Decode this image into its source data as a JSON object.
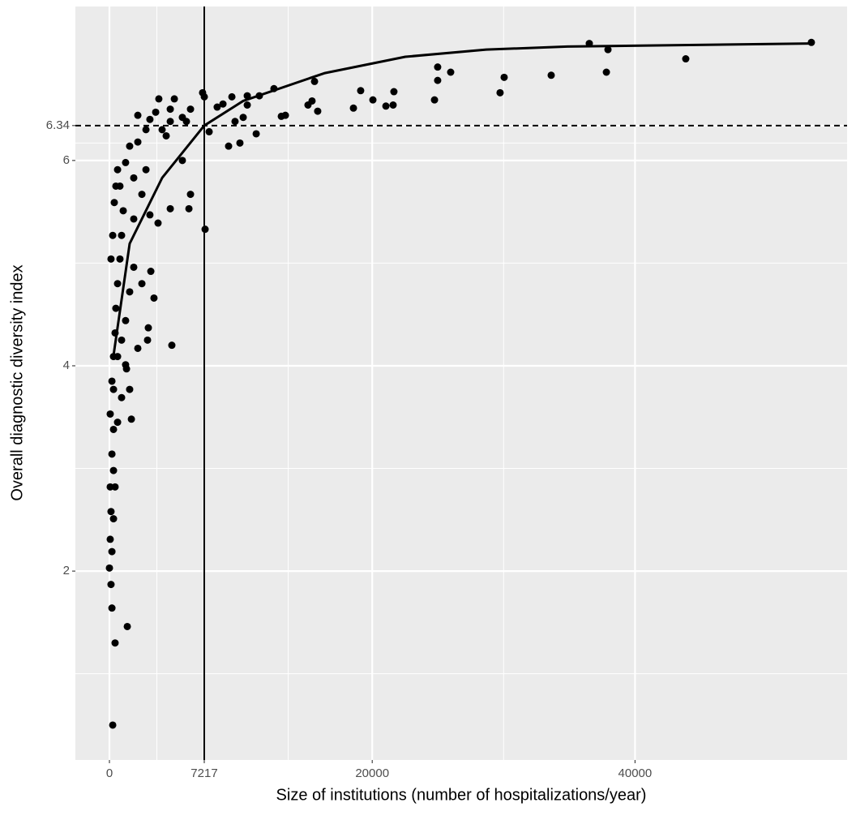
{
  "chart_data": {
    "type": "scatter",
    "x_label": "Size of institutions (number of hospitalizations/year)",
    "y_label": "Overall diagnostic diversity index",
    "color": "#000000",
    "grid": true,
    "xlim": [
      -2591,
      56138
    ],
    "ylim": [
      0.16,
      7.5
    ],
    "xticks": [
      0,
      7217,
      20000,
      40000
    ],
    "yticks": [
      2,
      4,
      6,
      6.34
    ],
    "hline": 6.34,
    "vline": 7217,
    "x": [
      53420,
      43860,
      37820,
      37940,
      36520,
      33620,
      30040,
      29730,
      25970,
      24980,
      24980,
      24740,
      21650,
      21590,
      21040,
      20050,
      19120,
      18570,
      15850,
      15420,
      15110,
      15610,
      13390,
      13080,
      12520,
      11410,
      11170,
      10490,
      9930,
      9070,
      9560,
      9320,
      8640,
      8200,
      7590,
      7280,
      7220,
      7090,
      6170,
      5550,
      4940,
      4630,
      3760,
      4010,
      3080,
      2160,
      5550,
      6170,
      6050,
      4630,
      3700,
      3150,
      3390,
      4750,
      2960,
      2900,
      2160,
      1670,
      1300,
      925,
      620,
      310,
      190,
      60,
      120,
      60,
      0,
      120,
      190,
      430,
      1360,
      250,
      310,
      310,
      430,
      190,
      60,
      190,
      310,
      430,
      490,
      620,
      800,
      925,
      1050,
      800,
      620,
      1230,
      1540,
      1850,
      2160,
      2470,
      2780,
      1230,
      1540,
      1850,
      2470,
      120,
      250,
      370,
      490,
      925,
      1230,
      1540,
      310,
      620,
      1850,
      3080,
      4320,
      3520,
      5860,
      4630,
      2780,
      10490,
      10180
    ],
    "values": [
      7.15,
      6.99,
      6.86,
      7.08,
      7.14,
      6.83,
      6.81,
      6.66,
      6.86,
      6.91,
      6.78,
      6.59,
      6.67,
      6.54,
      6.53,
      6.59,
      6.68,
      6.51,
      6.48,
      6.58,
      6.54,
      6.77,
      6.44,
      6.43,
      6.7,
      6.63,
      6.26,
      6.63,
      6.17,
      6.14,
      6.38,
      6.62,
      6.55,
      6.52,
      6.28,
      5.33,
      6.62,
      6.66,
      6.5,
      6.42,
      6.6,
      6.5,
      6.6,
      6.3,
      6.4,
      6.44,
      6.0,
      5.67,
      5.53,
      5.53,
      5.39,
      4.92,
      4.66,
      4.2,
      4.37,
      4.25,
      4.17,
      3.48,
      3.97,
      3.69,
      3.45,
      3.38,
      3.14,
      2.82,
      2.58,
      2.31,
      2.03,
      1.87,
      1.64,
      1.3,
      1.46,
      0.5,
      2.98,
      2.51,
      2.82,
      2.19,
      3.53,
      3.85,
      4.09,
      4.32,
      4.56,
      4.8,
      5.04,
      5.27,
      5.51,
      5.75,
      5.91,
      5.98,
      6.14,
      5.83,
      6.18,
      5.67,
      5.91,
      4.44,
      4.72,
      4.96,
      4.8,
      5.04,
      5.27,
      5.59,
      5.75,
      4.25,
      4.01,
      3.77,
      3.77,
      4.09,
      5.43,
      5.47,
      6.24,
      6.47,
      6.38,
      6.38,
      6.3,
      6.54,
      6.42
    ],
    "fit": {
      "x": [
        300,
        1540,
        4010,
        7217,
        10180,
        16350,
        22520,
        28680,
        34850,
        41020,
        53360
      ],
      "values": [
        4.09,
        5.19,
        5.83,
        6.34,
        6.58,
        6.85,
        7.01,
        7.08,
        7.11,
        7.12,
        7.14
      ]
    }
  }
}
